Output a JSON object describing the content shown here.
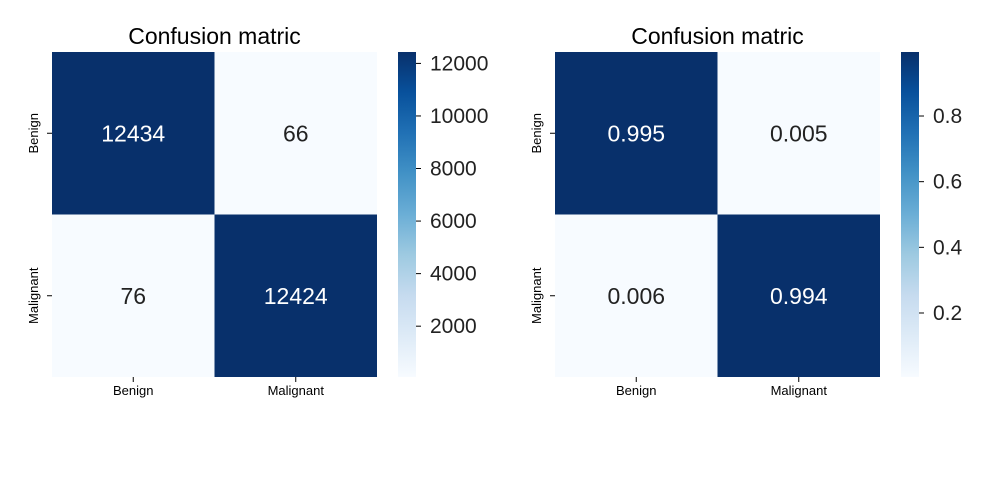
{
  "chart_data": [
    {
      "type": "heatmap",
      "title": "Confusion matric",
      "x_categories": [
        "Benign",
        "Malignant"
      ],
      "y_categories": [
        "Benign",
        "Malignant"
      ],
      "values": [
        [
          12434,
          66
        ],
        [
          76,
          12424
        ]
      ],
      "value_labels": [
        [
          "12434",
          "66"
        ],
        [
          "76",
          "12424"
        ]
      ],
      "colormap": "Blues",
      "vmin": 66,
      "vmax": 12434,
      "colorbar_ticks": [
        2000,
        4000,
        6000,
        8000,
        10000,
        12000
      ],
      "colorbar_tick_labels": [
        "2000",
        "4000",
        "6000",
        "8000",
        "10000",
        "12000"
      ]
    },
    {
      "type": "heatmap",
      "title": "Confusion matric",
      "x_categories": [
        "Benign",
        "Malignant"
      ],
      "y_categories": [
        "Benign",
        "Malignant"
      ],
      "values": [
        [
          0.995,
          0.005
        ],
        [
          0.006,
          0.994
        ]
      ],
      "value_labels": [
        [
          "0.995",
          "0.005"
        ],
        [
          "0.006",
          "0.994"
        ]
      ],
      "colormap": "Blues",
      "vmin": 0.005,
      "vmax": 0.995,
      "colorbar_ticks": [
        0.2,
        0.4,
        0.6,
        0.8
      ],
      "colorbar_tick_labels": [
        "0.2",
        "0.4",
        "0.6",
        "0.8"
      ]
    }
  ]
}
